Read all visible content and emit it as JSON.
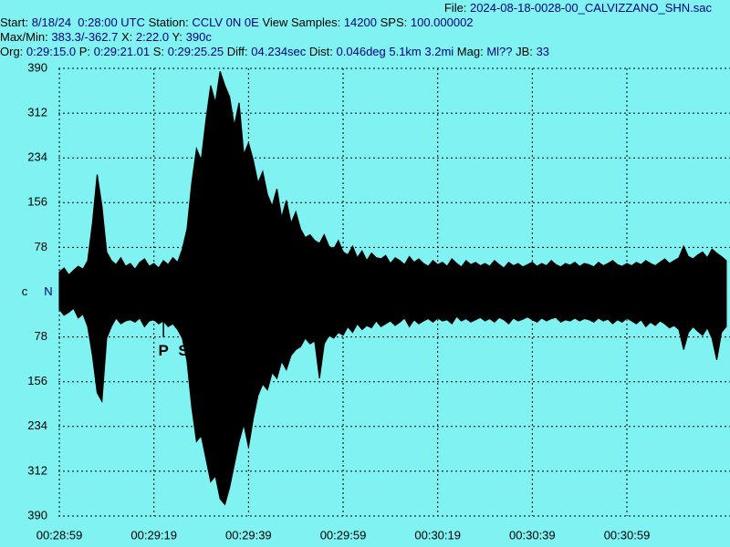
{
  "header": {
    "file": {
      "label": "File:",
      "value": "2024-08-18-0028-00_CALVIZZANO_SHN.sac"
    },
    "lines": [
      [
        {
          "label": "Start:",
          "value": "8/18/24  0:28:00 UTC"
        },
        {
          "label": "Station:",
          "value": "CCLV 0N 0E"
        },
        {
          "label": "View Samples:",
          "value": "14200"
        },
        {
          "label": "SPS:",
          "value": "100.000002"
        }
      ],
      [
        {
          "label": "Max/Min:",
          "value": "383.3/-362.7"
        },
        {
          "label": "X:",
          "value": "2:22.0"
        },
        {
          "label": "Y:",
          "value": "390c"
        }
      ],
      [
        {
          "label": "Org:",
          "value": "0:29:15.0"
        },
        {
          "label": "P:",
          "value": "0:29:21.01"
        },
        {
          "label": "S:",
          "value": "0:29:25.25"
        },
        {
          "label": "Diff:",
          "value": "04.234sec"
        },
        {
          "label": "Dist:",
          "value": "0.046deg 5.1km 3.2mi"
        },
        {
          "label": "Mag:",
          "value": "Ml??"
        },
        {
          "label": "JB:",
          "value": "33"
        }
      ]
    ]
  },
  "chart_data": {
    "type": "area",
    "channel": "c",
    "component": "N",
    "x": [
      1739,
      1740,
      1741,
      1742,
      1743,
      1744,
      1745,
      1746,
      1747,
      1748,
      1749,
      1750,
      1751,
      1752,
      1753,
      1754,
      1755,
      1756,
      1757,
      1758,
      1759,
      1760,
      1761,
      1762,
      1763,
      1764,
      1765,
      1766,
      1767,
      1768,
      1769,
      1770,
      1771,
      1772,
      1773,
      1774,
      1775,
      1776,
      1777,
      1778,
      1779,
      1780,
      1781,
      1782,
      1783,
      1784,
      1785,
      1786,
      1787,
      1788,
      1789,
      1790,
      1791,
      1792,
      1793,
      1794,
      1795,
      1796,
      1797,
      1798,
      1799,
      1800,
      1801,
      1802,
      1803,
      1804,
      1805,
      1806,
      1807,
      1808,
      1809,
      1810,
      1811,
      1812,
      1813,
      1814,
      1815,
      1816,
      1817,
      1818,
      1819,
      1820,
      1821,
      1822,
      1823,
      1824,
      1825,
      1826,
      1827,
      1828,
      1829,
      1830,
      1831,
      1832,
      1833,
      1834,
      1835,
      1836,
      1837,
      1838,
      1839,
      1840,
      1841,
      1842,
      1843,
      1844,
      1845,
      1846,
      1847,
      1848,
      1849,
      1850,
      1851,
      1852,
      1853,
      1854,
      1855,
      1856,
      1857,
      1858,
      1859,
      1860,
      1861,
      1862,
      1863,
      1864,
      1865,
      1866,
      1867,
      1868,
      1869,
      1870,
      1871,
      1872,
      1873,
      1874,
      1875,
      1876,
      1877,
      1878,
      1879,
      1880
    ],
    "series": [
      {
        "color": "#000000",
        "values": [
          35,
          42,
          30,
          38,
          45,
          40,
          55,
          120,
          205,
          150,
          70,
          55,
          48,
          60,
          45,
          50,
          40,
          52,
          58,
          45,
          50,
          42,
          55,
          48,
          60,
          52,
          75,
          110,
          190,
          250,
          230,
          300,
          360,
          330,
          385,
          360,
          340,
          290,
          330,
          240,
          260,
          230,
          190,
          210,
          170,
          150,
          180,
          130,
          160,
          120,
          140,
          110,
          95,
          100,
          90,
          85,
          100,
          80,
          75,
          90,
          70,
          65,
          80,
          60,
          72,
          55,
          68,
          60,
          58,
          64,
          50,
          60,
          55,
          48,
          62,
          52,
          58,
          50,
          45,
          55,
          48,
          52,
          45,
          58,
          50,
          44,
          55,
          48,
          52,
          46,
          50,
          45,
          55,
          48,
          42,
          52,
          46,
          50,
          44,
          48,
          52,
          45,
          50,
          46,
          55,
          48,
          44,
          50,
          47,
          52,
          45,
          50,
          48,
          44,
          52,
          46,
          50,
          55,
          48,
          45,
          50,
          46,
          52,
          48,
          55,
          50,
          46,
          52,
          58,
          50,
          55,
          60,
          80,
          62,
          58,
          65,
          70,
          60,
          75,
          68,
          62,
          55
        ]
      },
      {
        "color": "#000000",
        "values": [
          -30,
          -40,
          -35,
          -28,
          -45,
          -38,
          -60,
          -110,
          -175,
          -190,
          -80,
          -60,
          -45,
          -55,
          -50,
          -48,
          -52,
          -45,
          -60,
          -50,
          -48,
          -55,
          -50,
          -60,
          -55,
          -65,
          -80,
          -120,
          -200,
          -260,
          -250,
          -290,
          -330,
          -320,
          -360,
          -370,
          -340,
          -300,
          -260,
          -230,
          -270,
          -220,
          -180,
          -160,
          -170,
          -140,
          -150,
          -120,
          -135,
          -110,
          -100,
          -95,
          -80,
          -90,
          -85,
          -150,
          -90,
          -75,
          -80,
          -70,
          -75,
          -60,
          -70,
          -55,
          -65,
          -58,
          -62,
          -50,
          -60,
          -55,
          -50,
          -58,
          -52,
          -45,
          -60,
          -48,
          -55,
          -50,
          -46,
          -52,
          -45,
          -50,
          -48,
          -55,
          -42,
          -50,
          -46,
          -52,
          -48,
          -44,
          -50,
          -46,
          -52,
          -44,
          -48,
          -55,
          -45,
          -50,
          -47,
          -43,
          -48,
          -52,
          -45,
          -50,
          -46,
          -44,
          -52,
          -48,
          -50,
          -45,
          -50,
          -46,
          -48,
          -52,
          -45,
          -50,
          -47,
          -55,
          -48,
          -52,
          -45,
          -50,
          -55,
          -48,
          -60,
          -52,
          -58,
          -50,
          -55,
          -62,
          -58,
          -65,
          -100,
          -70,
          -60,
          -68,
          -75,
          -62,
          -80,
          -118,
          -70,
          -60
        ]
      }
    ],
    "xlim": [
      1738.8,
      1880.8
    ],
    "xticks": [
      {
        "value": 1739,
        "label": "00:28:59"
      },
      {
        "value": 1759,
        "label": "00:29:19"
      },
      {
        "value": 1779,
        "label": "00:29:39"
      },
      {
        "value": 1799,
        "label": "00:29:59"
      },
      {
        "value": 1819,
        "label": "00:30:19"
      },
      {
        "value": 1839,
        "label": "00:30:39"
      },
      {
        "value": 1859,
        "label": "00:30:59"
      }
    ],
    "ylim": [
      -390,
      390
    ],
    "yticks": [
      390,
      312,
      234,
      156,
      78,
      {
        "value": -78,
        "label": "78"
      },
      {
        "value": -156,
        "label": "156"
      },
      {
        "value": -234,
        "label": "234"
      },
      {
        "value": -312,
        "label": "312"
      },
      {
        "value": -390,
        "label": "390"
      }
    ],
    "grid": true,
    "annotations": [
      {
        "text": "P",
        "x": 1761.01
      },
      {
        "text": "S",
        "x": 1765.25
      }
    ]
  }
}
